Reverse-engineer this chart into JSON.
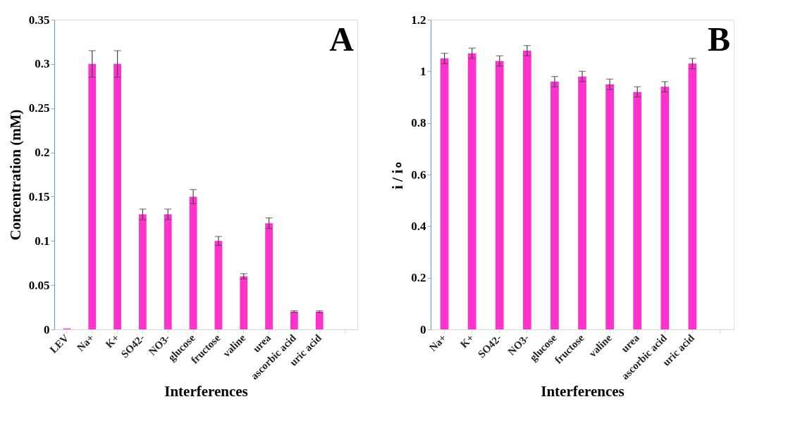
{
  "chart_data": [
    {
      "type": "bar",
      "annotations": [
        "A"
      ],
      "xlabel": "Interferences",
      "ylabel": "Concentration (mM)",
      "categories": [
        "LEV",
        "Na+",
        "K+",
        "SO42-",
        "NO3-",
        "glucose",
        "fructose",
        "valine",
        "urea",
        "ascorbic acid",
        "uric acid",
        null
      ],
      "values": [
        0.001,
        0.3,
        0.3,
        0.13,
        0.13,
        0.15,
        0.1,
        0.06,
        0.12,
        0.02,
        0.02,
        null
      ],
      "errors": [
        null,
        0.015,
        0.015,
        0.006,
        0.006,
        0.008,
        0.005,
        0.003,
        0.006,
        0.001,
        0.001,
        null
      ],
      "color": "#ff33cc",
      "ylim": [
        0,
        0.35
      ],
      "yticks": [
        0,
        0.05,
        0.1,
        0.15,
        0.2,
        0.25,
        0.3,
        0.35
      ],
      "grid": false
    },
    {
      "type": "bar",
      "annotations": [
        "B"
      ],
      "xlabel": "Interferences",
      "ylabel": "i / i∘",
      "categories": [
        "Na+",
        "K+",
        "SO42-",
        "NO3-",
        "glucose",
        "fructose",
        "valine",
        "urea",
        "ascorbic acid",
        "uric acid",
        null
      ],
      "values": [
        1.05,
        1.07,
        1.04,
        1.08,
        0.96,
        0.98,
        0.95,
        0.92,
        0.94,
        1.03,
        null
      ],
      "errors": [
        0.02,
        0.02,
        0.02,
        0.02,
        0.02,
        0.02,
        0.02,
        0.02,
        0.02,
        0.02,
        null
      ],
      "color": "#ff33cc",
      "ylim": [
        0,
        1.2
      ],
      "yticks": [
        0,
        0.2,
        0.4,
        0.6,
        0.8,
        1,
        1.2
      ],
      "grid": false
    }
  ]
}
